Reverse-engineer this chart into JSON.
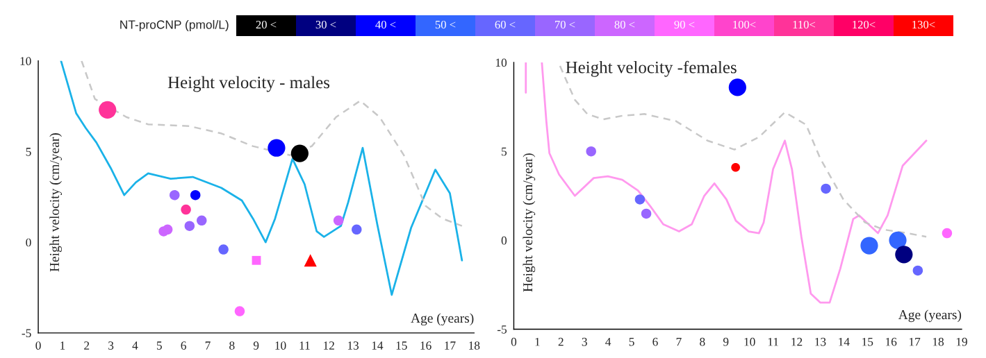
{
  "chart_data": [
    {
      "type": "other",
      "title": "NT-proCNP (pmol/L)",
      "categories": [
        "20 <",
        "30 <",
        "40 <",
        "50 <",
        "60 <",
        "70 <",
        "80 <",
        "90 <",
        "100<",
        "110<",
        "120<",
        "130<"
      ],
      "colors": [
        "#000000",
        "#000080",
        "#0000ff",
        "#3366ff",
        "#6666ff",
        "#9966ff",
        "#cc66ff",
        "#ff66ff",
        "#ff44cc",
        "#ff3399",
        "#ff0066",
        "#ff0000"
      ]
    },
    {
      "type": "bubble",
      "title": "Height velocity - males",
      "xlabel": "Age (years)",
      "ylabel": "Height velocity (cm/year)",
      "xlim": [
        0,
        18
      ],
      "xticks": [
        0,
        1,
        2,
        3,
        4,
        5,
        6,
        7,
        8,
        9,
        10,
        11,
        12,
        13,
        14,
        15,
        16,
        17,
        18
      ],
      "ylim": [
        -5,
        10
      ],
      "yticks": [
        -5,
        0,
        5,
        10
      ],
      "series": [
        {
          "type": "line",
          "color": "#1ab2e8",
          "line_style": "solid",
          "x": [
            0.94,
            1.57,
            1.96,
            2.4,
            2.99,
            3.55,
            4.03,
            4.54,
            5.47,
            6.38,
            7.56,
            8.41,
            8.87,
            9.39,
            9.78,
            10.5,
            11.0,
            11.5,
            11.8,
            12.5,
            12.8,
            13.4,
            14.0,
            14.6,
            15.4,
            16.4,
            17.0,
            17.5
          ],
          "values": [
            10,
            7.1,
            6.3,
            5.5,
            4.1,
            2.6,
            3.3,
            3.8,
            3.5,
            3.6,
            3.0,
            2.3,
            1.3,
            0.0,
            1.3,
            4.6,
            3.2,
            0.6,
            0.3,
            0.9,
            2.2,
            5.2,
            1.0,
            -2.9,
            0.8,
            4.0,
            2.7,
            -1.0
          ]
        },
        {
          "type": "line",
          "color": "#c8c8c8",
          "line_style": "dashed",
          "x": [
            1.79,
            2.34,
            3.64,
            4.54,
            6.25,
            7.56,
            8.86,
            10.4,
            11.3,
            12.3,
            13.3,
            14.1,
            15.1,
            16.0,
            16.7,
            17.5
          ],
          "values": [
            10,
            7.9,
            6.9,
            6.5,
            6.4,
            6.0,
            5.3,
            4.8,
            5.3,
            6.9,
            7.8,
            6.9,
            4.8,
            2.0,
            1.3,
            0.9
          ]
        },
        {
          "type": "bubble",
          "color": "#ff3399",
          "marker": "circle",
          "x": [
            2.86,
            6.1
          ],
          "values": [
            7.3,
            1.8
          ],
          "sizes": [
            1,
            0.33
          ]
        },
        {
          "type": "bubble",
          "color": "#0000ff",
          "marker": "circle",
          "x": [
            9.84,
            6.49
          ],
          "values": [
            5.2,
            2.6
          ],
          "sizes": [
            1,
            0.33
          ]
        },
        {
          "type": "bubble",
          "color": "#000000",
          "marker": "circle",
          "x": [
            10.8
          ],
          "values": [
            4.9
          ],
          "sizes": [
            1
          ]
        },
        {
          "type": "bubble",
          "color": "#9966ff",
          "marker": "circle",
          "x": [
            5.63,
            6.25,
            6.75
          ],
          "values": [
            2.6,
            0.9,
            1.2
          ],
          "sizes": [
            0.33,
            0.33,
            0.33
          ]
        },
        {
          "type": "bubble",
          "color": "#cc66ff",
          "marker": "circle",
          "x": [
            5.18,
            5.34,
            12.4
          ],
          "values": [
            0.6,
            0.7,
            1.2
          ],
          "sizes": [
            0.33,
            0.33,
            0.33
          ]
        },
        {
          "type": "bubble",
          "color": "#6666ff",
          "marker": "circle",
          "x": [
            7.65,
            13.15
          ],
          "values": [
            -0.4,
            0.7
          ],
          "sizes": [
            0.33,
            0.33
          ]
        },
        {
          "type": "bubble",
          "color": "#ff66ff",
          "marker": "circle",
          "x": [
            8.32
          ],
          "values": [
            -3.8
          ],
          "sizes": [
            0.33
          ]
        },
        {
          "type": "bubble",
          "color": "#ff66ff",
          "marker": "square",
          "x": [
            9.01
          ],
          "values": [
            -1.0
          ],
          "sizes": [
            0.33
          ]
        },
        {
          "type": "bubble",
          "color": "#ff0000",
          "marker": "triangle",
          "x": [
            11.24
          ],
          "values": [
            -1.0
          ],
          "sizes": [
            0.33
          ]
        }
      ]
    },
    {
      "type": "bubble",
      "title": "Height velocity -females",
      "xlabel": "Age (years)",
      "ylabel": "Height velocity (cm/year)",
      "xlim": [
        0,
        19
      ],
      "xticks": [
        0,
        1,
        2,
        3,
        4,
        5,
        6,
        7,
        8,
        9,
        10,
        11,
        12,
        13,
        14,
        15,
        16,
        17,
        18,
        19
      ],
      "ylim": [
        -5,
        10
      ],
      "yticks": [
        -5,
        0,
        5,
        10
      ],
      "series": [
        {
          "type": "line",
          "color": "#ff99ee",
          "line_style": "solid",
          "x": [
            0.51,
            0.51,
            null,
            1.19,
            1.38,
            1.51,
            1.92,
            2.59,
            3.39,
            3.99,
            4.6,
            5.27,
            5.8,
            6.34,
            7.01,
            7.55,
            8.08,
            8.51,
            9.02,
            9.42,
            9.96,
            10.4,
            10.6,
            11.0,
            11.5,
            11.8,
            12.2,
            12.6,
            13.0,
            13.4,
            13.85,
            14.4,
            14.65,
            15.45,
            15.86,
            16.5,
            17.5
          ],
          "values": [
            8.3,
            10,
            null,
            10,
            6.7,
            4.9,
            3.7,
            2.5,
            3.5,
            3.6,
            3.4,
            2.8,
            1.9,
            0.9,
            0.5,
            0.9,
            2.5,
            3.2,
            2.3,
            1.1,
            0.5,
            0.4,
            1.0,
            4.0,
            5.6,
            4.0,
            0.2,
            -3.0,
            -3.5,
            -3.5,
            -1.6,
            1.2,
            1.4,
            0.4,
            1.4,
            4.2,
            5.6
          ]
        },
        {
          "type": "line",
          "color": "#c8c8c8",
          "line_style": "dashed",
          "x": [
            1.96,
            2.59,
            3.12,
            3.79,
            4.6,
            5.54,
            6.88,
            8.22,
            9.36,
            10.4,
            11.5,
            12.4,
            13.0,
            13.98,
            14.9,
            15.7,
            16.7,
            17.5
          ],
          "values": [
            9.8,
            7.9,
            7.1,
            6.8,
            7.0,
            7.1,
            6.7,
            5.6,
            5.1,
            5.8,
            7.2,
            6.5,
            4.6,
            2.3,
            1.0,
            0.6,
            0.4,
            0.2
          ]
        },
        {
          "type": "bubble",
          "color": "#0000ff",
          "marker": "circle",
          "x": [
            9.49
          ],
          "values": [
            8.6
          ],
          "sizes": [
            1
          ]
        },
        {
          "type": "bubble",
          "color": "#9966ff",
          "marker": "circle",
          "x": [
            3.28,
            5.62
          ],
          "values": [
            5.0,
            1.5
          ],
          "sizes": [
            0.33,
            0.33
          ]
        },
        {
          "type": "bubble",
          "color": "#ff0000",
          "marker": "circle",
          "x": [
            9.41
          ],
          "values": [
            4.1
          ],
          "sizes": [
            0.25
          ]
        },
        {
          "type": "bubble",
          "color": "#6666ff",
          "marker": "circle",
          "x": [
            5.35,
            13.24,
            17.14
          ],
          "values": [
            2.3,
            2.9,
            -1.7
          ],
          "sizes": [
            0.33,
            0.33,
            0.33
          ]
        },
        {
          "type": "bubble",
          "color": "#3366ff",
          "marker": "circle",
          "x": [
            15.08,
            16.29
          ],
          "values": [
            -0.3,
            0.0
          ],
          "sizes": [
            1,
            1
          ]
        },
        {
          "type": "bubble",
          "color": "#000080",
          "marker": "circle",
          "x": [
            16.55
          ],
          "values": [
            -0.8
          ],
          "sizes": [
            1
          ]
        },
        {
          "type": "bubble",
          "color": "#ff66ff",
          "marker": "circle",
          "x": [
            18.38
          ],
          "values": [
            0.4
          ],
          "sizes": [
            0.33
          ]
        }
      ]
    }
  ]
}
